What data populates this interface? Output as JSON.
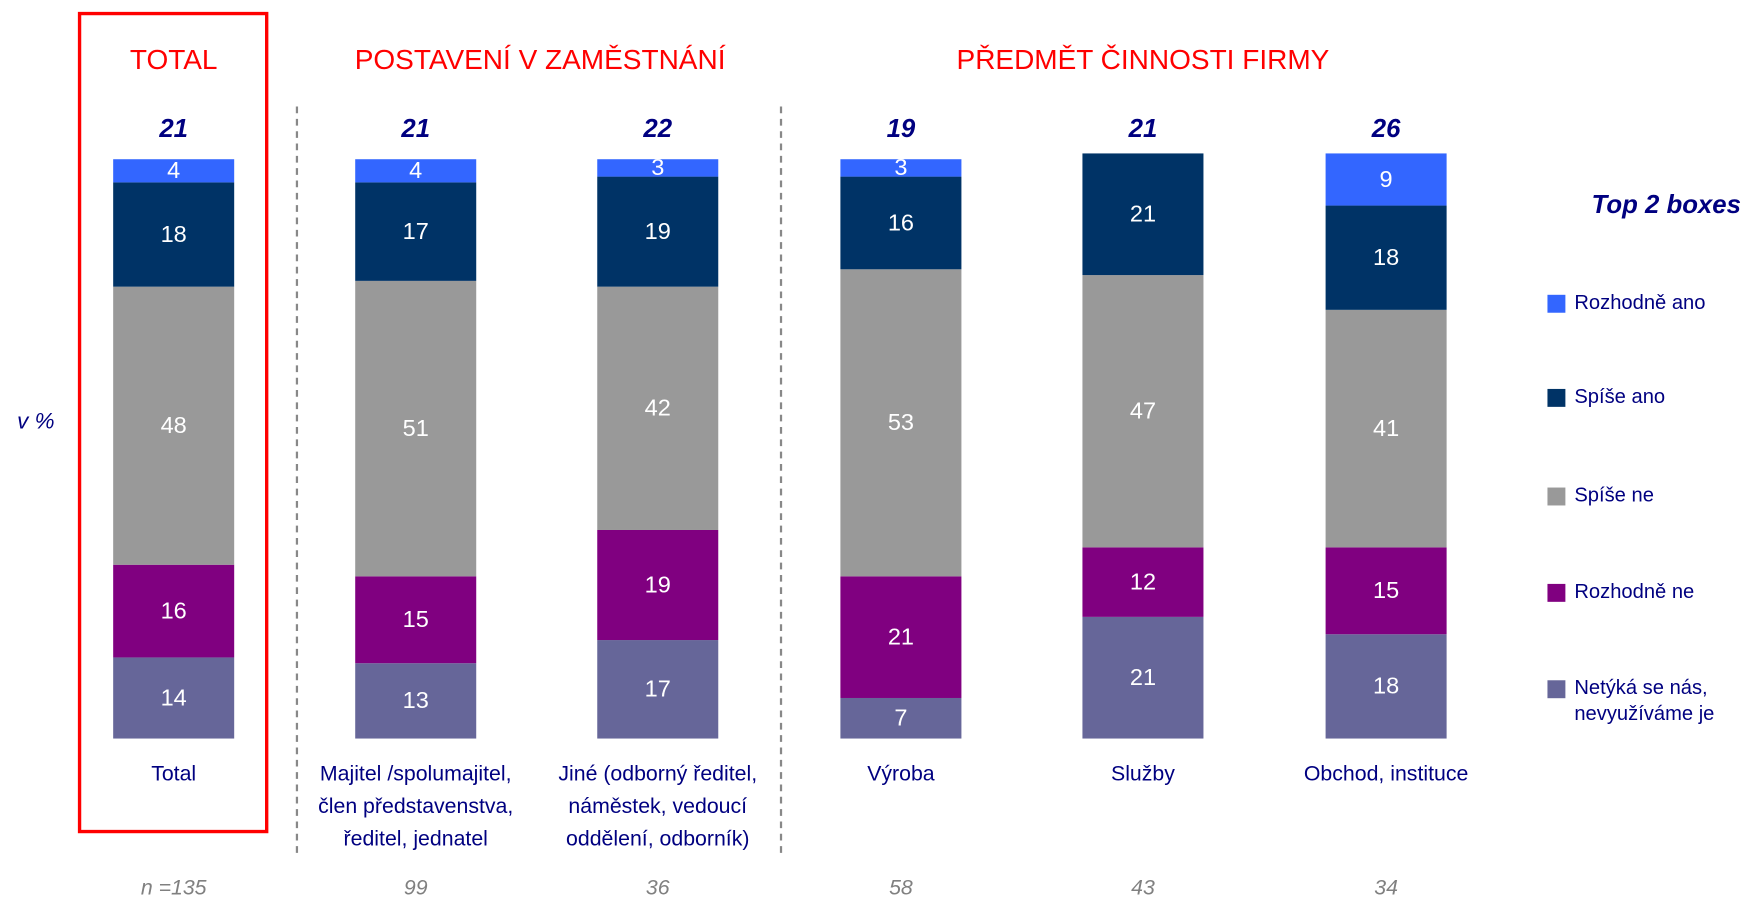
{
  "chart_data": {
    "type": "stacked_bar",
    "y_label": "v %",
    "groups": [
      "TOTAL",
      "POSTAVENÍ V ZAMĚSTNÁNÍ",
      "PŘEDMĚT ČINNOSTI FIRMY"
    ],
    "categories": [
      "Total",
      "Majitel /spolumajitel,\nčlen představenstva,\nředitel, jednatel",
      "Jiné (odborný ředitel,\nnáměstek, vedoucí\noddělení, odborník)",
      "Výroba",
      "Služby",
      "Obchod, instituce"
    ],
    "ylim": [
      0,
      100
    ],
    "series": [
      {
        "name": "Netýká se nás,\nnevyužíváme je",
        "color": "#666699",
        "values": [
          14,
          13,
          17,
          7,
          21,
          18
        ]
      },
      {
        "name": "Rozhodně ne",
        "color": "#800080",
        "values": [
          16,
          15,
          19,
          21,
          12,
          15
        ]
      },
      {
        "name": "Spíše ne",
        "color": "#999999",
        "values": [
          48,
          51,
          42,
          53,
          47,
          41
        ]
      },
      {
        "name": "Spíše ano",
        "color": "#003366",
        "values": [
          18,
          17,
          19,
          16,
          21,
          18
        ]
      },
      {
        "name": "Rozhodně ano",
        "color": "#3366ff",
        "values": [
          4,
          4,
          3,
          3,
          null,
          9
        ]
      }
    ],
    "top2_title": "Top 2 boxes",
    "top2": [
      21,
      21,
      22,
      19,
      21,
      26
    ],
    "sample_size_prefix": "n =",
    "sample_sizes": [
      135,
      99,
      36,
      58,
      43,
      34
    ]
  }
}
